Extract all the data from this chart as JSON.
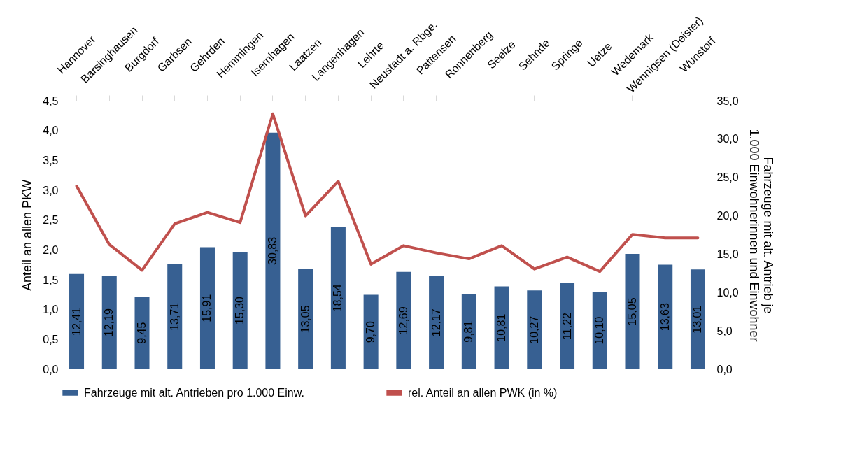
{
  "chart_data": {
    "type": "bar",
    "categories": [
      "Hannover",
      "Barsinghausen",
      "Burgdorf",
      "Garbsen",
      "Gehrden",
      "Hemmingen",
      "Isernhagen",
      "Laatzen",
      "Langenhagen",
      "Lehrte",
      "Neustadt a. Rbge.",
      "Pattensen",
      "Ronnenberg",
      "Seelze",
      "Sehnde",
      "Springe",
      "Uetze",
      "Wedemark",
      "Wennigsen (Deister)",
      "Wunstorf"
    ],
    "ylabel": "Anteil an allen PKW",
    "y2label": "Fahrzeuge mit alt. Antrieb je 1.000 Einwohnerinnen und Einwohner",
    "ylim": [
      0,
      4.5
    ],
    "yticks": [
      {
        "value": 0,
        "label": "0,0"
      },
      {
        "value": 0.5,
        "label": "0,5"
      },
      {
        "value": 1,
        "label": "1,0"
      },
      {
        "value": 1.5,
        "label": "1,5"
      },
      {
        "value": 2,
        "label": "2,0"
      },
      {
        "value": 2.5,
        "label": "2,5"
      },
      {
        "value": 3,
        "label": "3,0"
      },
      {
        "value": 3.5,
        "label": "3,5"
      },
      {
        "value": 4,
        "label": "4,0"
      },
      {
        "value": 4.5,
        "label": "4,5"
      }
    ],
    "y2lim": [
      0,
      35
    ],
    "y2ticks": [
      {
        "value": 0,
        "label": "0,0"
      },
      {
        "value": 5,
        "label": "5,0"
      },
      {
        "value": 10,
        "label": "10,0"
      },
      {
        "value": 15,
        "label": "15,0"
      },
      {
        "value": 20,
        "label": "20,0"
      },
      {
        "value": 25,
        "label": "25,0"
      },
      {
        "value": 30,
        "label": "30,0"
      },
      {
        "value": 35,
        "label": "35,0"
      }
    ],
    "series": [
      {
        "name": "Fahrzeuge mit alt. Antrieben pro 1.000 Einw.",
        "axis": "y2",
        "color": "#376092",
        "values": [
          12.41,
          12.19,
          9.45,
          13.71,
          15.91,
          15.3,
          30.83,
          13.05,
          18.54,
          9.7,
          12.69,
          12.17,
          9.81,
          10.81,
          10.27,
          11.22,
          10.1,
          15.05,
          13.63,
          13.01
        ],
        "value_labels": [
          "12,41",
          "12,19",
          "9,45",
          "13,71",
          "15,91",
          "15,30",
          "30,83",
          "13,05",
          "18,54",
          "9,70",
          "12,69",
          "12,17",
          "9,81",
          "10,81",
          "10,27",
          "11,22",
          "10,10",
          "15,05",
          "13,63",
          "13,01"
        ]
      },
      {
        "name": "rel. Anteil an allen PWK (in %)",
        "type": "line",
        "color": "#c0504d",
        "values": [
          3.07,
          2.09,
          1.66,
          2.44,
          2.63,
          2.46,
          4.28,
          2.57,
          3.15,
          1.76,
          2.07,
          1.95,
          1.85,
          2.07,
          1.68,
          1.88,
          1.64,
          2.26,
          2.2,
          2.2
        ]
      }
    ],
    "legend": "bottom",
    "grid": false
  }
}
